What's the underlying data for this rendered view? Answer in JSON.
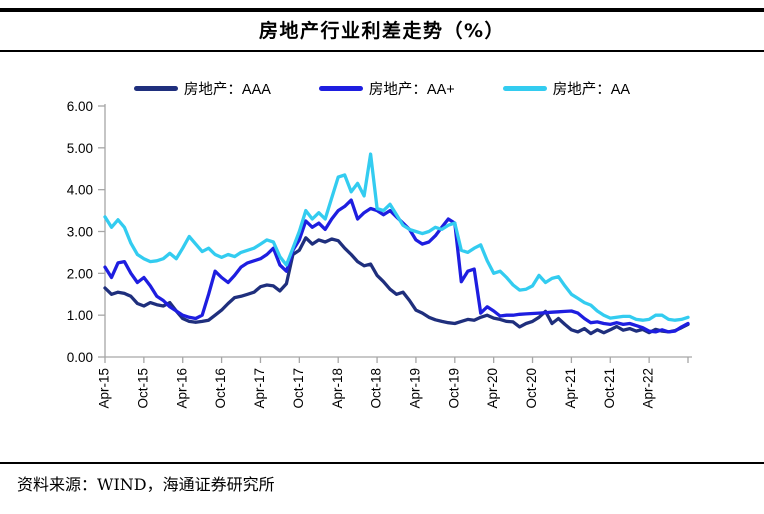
{
  "page": {
    "title": "房地产行业利差走势（%）",
    "source": "资料来源：WIND，海通证券研究所"
  },
  "chart_data": {
    "type": "line",
    "title": "房地产行业利差走势（%）",
    "legend_position": "top",
    "grid": false,
    "ylim": [
      0,
      6
    ],
    "y_ticks": [
      "0.00",
      "1.00",
      "2.00",
      "3.00",
      "4.00",
      "5.00",
      "6.00"
    ],
    "x_tick_interval": 6,
    "x_tick_labels": [
      "Apr-15",
      "Oct-15",
      "Apr-16",
      "Oct-16",
      "Apr-17",
      "Oct-17",
      "Apr-18",
      "Oct-18",
      "Apr-19",
      "Oct-19",
      "Apr-20",
      "Oct-20",
      "Apr-21",
      "Oct-21",
      "Apr-22"
    ],
    "axis_color": "#a6a6a6",
    "series": [
      {
        "name": "房地产：AAA",
        "color": "#1f2f7d",
        "values": [
          1.65,
          1.5,
          1.55,
          1.52,
          1.45,
          1.28,
          1.22,
          1.3,
          1.25,
          1.22,
          1.3,
          1.1,
          0.92,
          0.85,
          0.83,
          0.85,
          0.88,
          1.0,
          1.12,
          1.28,
          1.42,
          1.45,
          1.5,
          1.55,
          1.68,
          1.72,
          1.7,
          1.58,
          1.75,
          2.45,
          2.55,
          2.85,
          2.7,
          2.8,
          2.75,
          2.82,
          2.78,
          2.6,
          2.45,
          2.28,
          2.18,
          2.22,
          1.95,
          1.8,
          1.62,
          1.5,
          1.55,
          1.35,
          1.12,
          1.05,
          0.95,
          0.89,
          0.85,
          0.82,
          0.8,
          0.85,
          0.9,
          0.88,
          0.95,
          1.0,
          0.93,
          0.9,
          0.85,
          0.84,
          0.72,
          0.8,
          0.85,
          0.95,
          1.09,
          0.8,
          0.92,
          0.78,
          0.65,
          0.6,
          0.68,
          0.56,
          0.65,
          0.58,
          0.65,
          0.73,
          0.64,
          0.68,
          0.62,
          0.66,
          0.58,
          0.66,
          0.62,
          0.6,
          0.63,
          0.7,
          0.78
        ]
      },
      {
        "name": "房地产：AA+",
        "color": "#1e1ee0",
        "values": [
          2.15,
          1.9,
          2.25,
          2.28,
          2.0,
          1.78,
          1.9,
          1.7,
          1.45,
          1.35,
          1.2,
          1.1,
          1.0,
          0.95,
          0.92,
          1.0,
          1.5,
          2.05,
          1.9,
          1.78,
          1.95,
          2.15,
          2.25,
          2.3,
          2.35,
          2.45,
          2.6,
          2.2,
          2.05,
          2.55,
          2.8,
          3.25,
          3.1,
          3.2,
          3.05,
          3.3,
          3.5,
          3.6,
          3.75,
          3.3,
          3.45,
          3.55,
          3.5,
          3.4,
          3.5,
          3.35,
          3.2,
          3.05,
          2.8,
          2.7,
          2.75,
          2.9,
          3.1,
          3.3,
          3.2,
          1.8,
          2.05,
          2.1,
          1.05,
          1.2,
          1.1,
          0.98,
          1.0,
          1.0,
          1.02,
          1.03,
          1.04,
          1.05,
          1.06,
          1.07,
          1.08,
          1.09,
          1.1,
          1.05,
          0.92,
          0.82,
          0.84,
          0.8,
          0.78,
          0.82,
          0.78,
          0.8,
          0.75,
          0.7,
          0.62,
          0.6,
          0.65,
          0.6,
          0.62,
          0.72,
          0.8
        ]
      },
      {
        "name": "房地产：AA",
        "color": "#33ccf0",
        "values": [
          3.35,
          3.1,
          3.28,
          3.1,
          2.72,
          2.45,
          2.35,
          2.28,
          2.3,
          2.35,
          2.48,
          2.35,
          2.6,
          2.88,
          2.7,
          2.52,
          2.6,
          2.45,
          2.38,
          2.45,
          2.4,
          2.5,
          2.55,
          2.6,
          2.7,
          2.8,
          2.75,
          2.4,
          2.2,
          2.6,
          3.0,
          3.5,
          3.3,
          3.45,
          3.3,
          3.8,
          4.3,
          4.35,
          3.95,
          4.15,
          3.85,
          4.85,
          3.55,
          3.5,
          3.65,
          3.4,
          3.15,
          3.05,
          3.0,
          2.95,
          3.0,
          3.1,
          3.05,
          3.15,
          3.2,
          2.55,
          2.5,
          2.6,
          2.68,
          2.3,
          2.0,
          2.05,
          1.9,
          1.72,
          1.6,
          1.62,
          1.7,
          1.95,
          1.78,
          1.88,
          1.92,
          1.7,
          1.5,
          1.4,
          1.3,
          1.24,
          1.1,
          1.0,
          0.93,
          0.95,
          0.97,
          0.97,
          0.9,
          0.88,
          0.9,
          1.0,
          1.0,
          0.9,
          0.88,
          0.9,
          0.95
        ]
      }
    ]
  }
}
